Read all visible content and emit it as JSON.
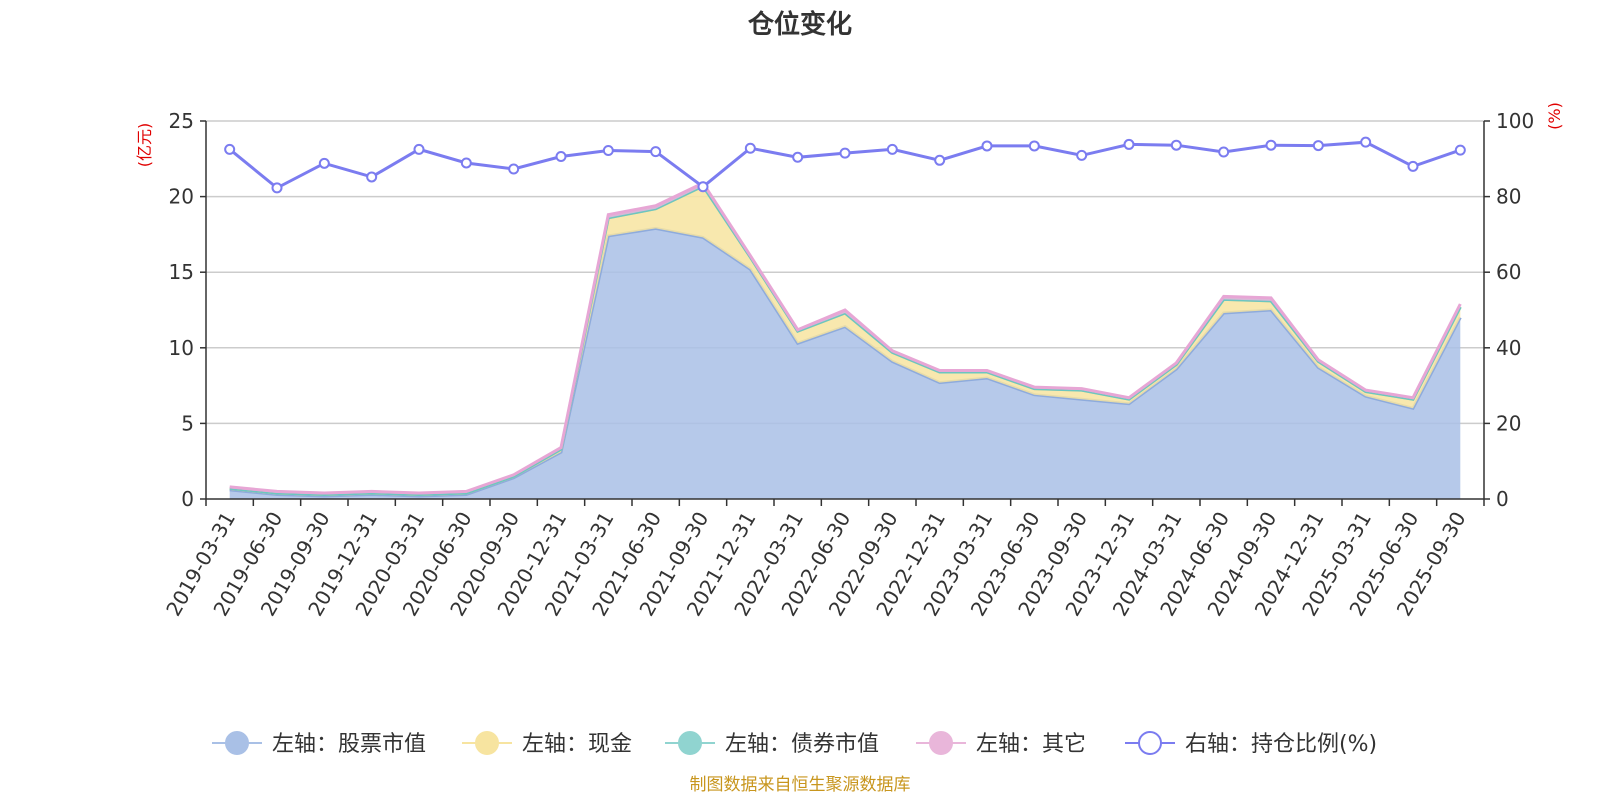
{
  "chart_data": {
    "type": "area",
    "title": "仓位变化",
    "left_axis": {
      "unit": "(亿元)",
      "range": [
        0,
        25
      ],
      "ticks": [
        0,
        5,
        10,
        15,
        20,
        25
      ]
    },
    "right_axis": {
      "unit": "(%)",
      "range": [
        0,
        100
      ],
      "ticks": [
        0,
        20,
        40,
        60,
        80,
        100
      ]
    },
    "x": [
      "2019-03-31",
      "2019-06-30",
      "2019-09-30",
      "2019-12-31",
      "2020-03-31",
      "2020-06-30",
      "2020-09-30",
      "2020-12-31",
      "2021-03-31",
      "2021-06-30",
      "2021-09-30",
      "2021-12-31",
      "2022-03-31",
      "2022-06-30",
      "2022-09-30",
      "2022-12-31",
      "2023-03-31",
      "2023-06-30",
      "2023-09-30",
      "2023-12-31",
      "2024-03-31",
      "2024-06-30",
      "2024-09-30",
      "2024-12-31",
      "2025-03-31",
      "2025-06-30",
      "2025-09-30"
    ],
    "stacked_series": [
      {
        "name": "左轴：股票市值",
        "axis": "left",
        "color": "#a9c0e6",
        "values": [
          0.6,
          0.3,
          0.2,
          0.3,
          0.2,
          0.3,
          1.4,
          3.1,
          17.4,
          17.9,
          17.3,
          15.2,
          10.3,
          11.4,
          9.1,
          7.7,
          8.0,
          6.9,
          6.6,
          6.3,
          8.6,
          12.3,
          12.5,
          8.7,
          6.8,
          6.0,
          12.0
        ]
      },
      {
        "name": "左轴：现金",
        "axis": "left",
        "color": "#f7e4a0",
        "values": [
          0.1,
          0.1,
          0.1,
          0.1,
          0.1,
          0.1,
          0.1,
          0.2,
          1.2,
          1.3,
          3.4,
          0.8,
          0.8,
          0.9,
          0.6,
          0.7,
          0.4,
          0.4,
          0.6,
          0.3,
          0.3,
          0.9,
          0.6,
          0.4,
          0.3,
          0.6,
          0.7
        ]
      },
      {
        "name": "左轴：债券市值",
        "axis": "left",
        "color": "#90d4d0",
        "values": [
          0,
          0,
          0,
          0,
          0,
          0,
          0,
          0,
          0,
          0,
          0,
          0,
          0,
          0,
          0,
          0,
          0,
          0,
          0,
          0,
          0,
          0,
          0,
          0,
          0,
          0,
          0
        ]
      },
      {
        "name": "左轴：其它",
        "axis": "left",
        "color": "#e9b6da",
        "values": [
          0.1,
          0.1,
          0.1,
          0.1,
          0.1,
          0.1,
          0.1,
          0.1,
          0.2,
          0.2,
          0.2,
          0.1,
          0.1,
          0.2,
          0.1,
          0.1,
          0.1,
          0.1,
          0.1,
          0.1,
          0.1,
          0.2,
          0.2,
          0.1,
          0.1,
          0.1,
          0.2
        ]
      }
    ],
    "line_series": {
      "name": "右轴：持仓比例(%)",
      "axis": "right",
      "color": "#7b7cf0",
      "values": [
        92.5,
        82.3,
        88.8,
        85.2,
        92.5,
        88.9,
        87.3,
        90.6,
        92.2,
        91.9,
        82.6,
        92.8,
        90.4,
        91.5,
        92.5,
        89.6,
        93.4,
        93.4,
        90.9,
        93.8,
        93.6,
        91.8,
        93.6,
        93.5,
        94.4,
        88.0,
        92.3
      ]
    },
    "grid": true
  },
  "source_text": "制图数据来自恒生聚源数据库"
}
